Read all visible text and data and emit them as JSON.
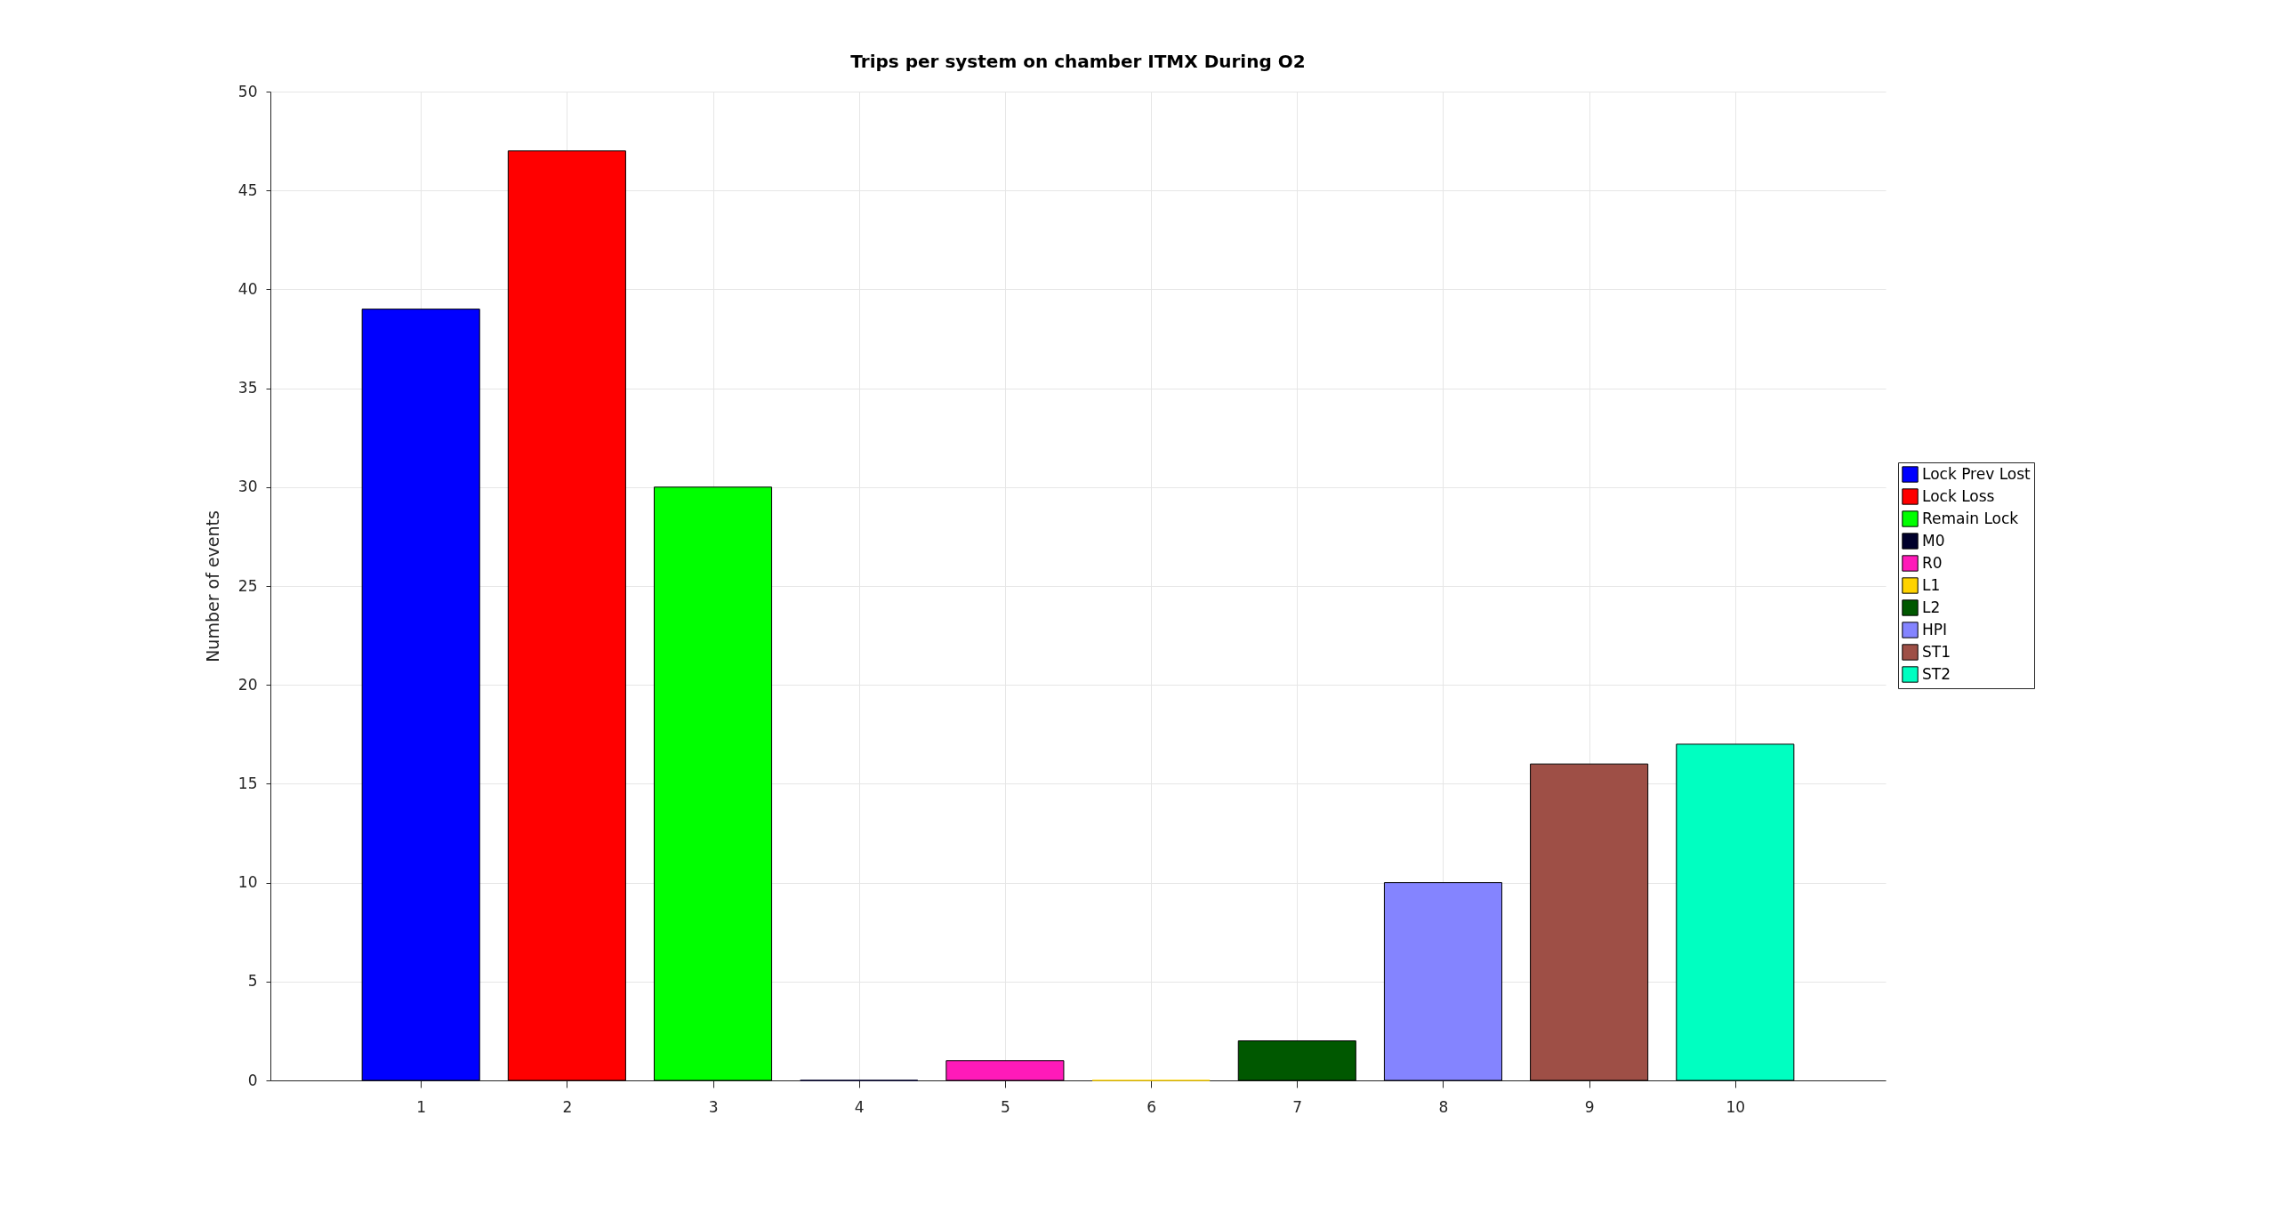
{
  "chart_data": {
    "type": "bar",
    "title": "Trips per system on chamber ITMX During O2",
    "ylabel": "Number of events",
    "x": [
      1,
      2,
      3,
      4,
      5,
      6,
      7,
      8,
      9,
      10
    ],
    "series": [
      {
        "name": "Lock Prev Lost",
        "color": "#0000ff",
        "values": [
          39,
          null,
          null,
          null,
          null,
          null,
          null,
          null,
          null,
          null
        ]
      },
      {
        "name": "Lock Loss",
        "color": "#ff0000",
        "values": [
          null,
          47,
          null,
          null,
          null,
          null,
          null,
          null,
          null,
          null
        ]
      },
      {
        "name": "Remain Lock",
        "color": "#00ff00",
        "values": [
          null,
          null,
          30,
          null,
          null,
          null,
          null,
          null,
          null,
          null
        ]
      },
      {
        "name": "M0",
        "color": "#00002c",
        "values": [
          null,
          null,
          null,
          0,
          null,
          null,
          null,
          null,
          null,
          null
        ]
      },
      {
        "name": "R0",
        "color": "#ff1ab9",
        "values": [
          null,
          null,
          null,
          null,
          1,
          null,
          null,
          null,
          null,
          null
        ]
      },
      {
        "name": "L1",
        "color": "#ffd300",
        "values": [
          null,
          null,
          null,
          null,
          null,
          0,
          null,
          null,
          null,
          null
        ]
      },
      {
        "name": "L2",
        "color": "#005800",
        "values": [
          null,
          null,
          null,
          null,
          null,
          null,
          2,
          null,
          null,
          null
        ]
      },
      {
        "name": "HPI",
        "color": "#8484ff",
        "values": [
          null,
          null,
          null,
          null,
          null,
          null,
          null,
          10,
          null,
          null
        ]
      },
      {
        "name": "ST1",
        "color": "#9e4f46",
        "values": [
          null,
          null,
          null,
          null,
          null,
          null,
          null,
          null,
          16,
          null
        ]
      },
      {
        "name": "ST2",
        "color": "#00ffc1",
        "values": [
          null,
          null,
          null,
          null,
          null,
          null,
          null,
          null,
          null,
          17
        ]
      }
    ],
    "xlim": [
      0,
      11
    ],
    "xticks": [
      1,
      2,
      3,
      4,
      5,
      6,
      7,
      8,
      9,
      10
    ],
    "ylim": [
      0,
      50
    ],
    "yticks": [
      0,
      5,
      10,
      15,
      20,
      25,
      30,
      35,
      40,
      45,
      50
    ],
    "grid": true,
    "legend": "right"
  }
}
